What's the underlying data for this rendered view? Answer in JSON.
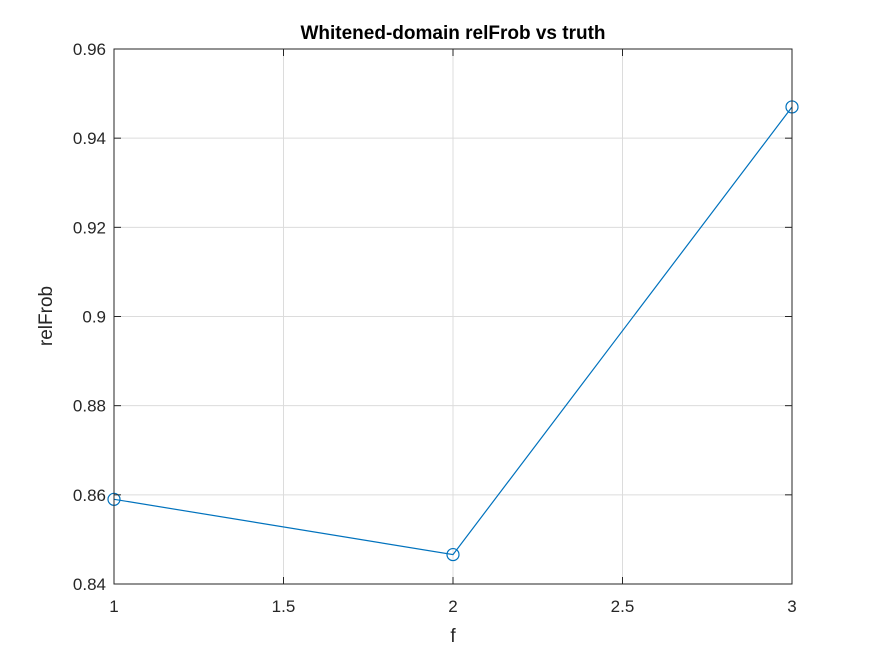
{
  "chart_data": {
    "type": "line",
    "title": "Whitened-domain relFrob vs truth",
    "xlabel": "f",
    "ylabel": "relFrob",
    "xlim": [
      1,
      3
    ],
    "ylim": [
      0.84,
      0.96
    ],
    "xticks": [
      1,
      1.5,
      2,
      2.5,
      3
    ],
    "xtick_labels": [
      "1",
      "1.5",
      "2",
      "2.5",
      "3"
    ],
    "yticks": [
      0.84,
      0.86,
      0.88,
      0.9,
      0.92,
      0.94,
      0.96
    ],
    "ytick_labels": [
      "0.84",
      "0.86",
      "0.88",
      "0.9",
      "0.92",
      "0.94",
      "0.96"
    ],
    "grid": true,
    "marker": "circle",
    "series": [
      {
        "color": "#0072BD",
        "x": [
          1,
          2,
          3
        ],
        "y": [
          0.859,
          0.8466,
          0.947
        ]
      }
    ]
  }
}
